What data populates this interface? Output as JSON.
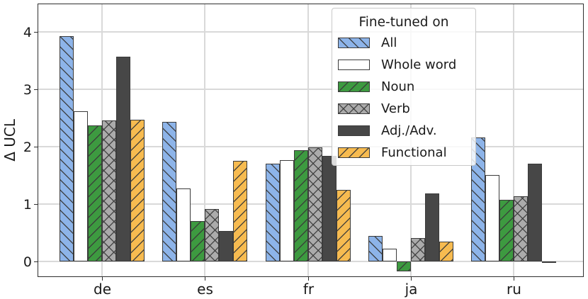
{
  "chart_data": {
    "type": "bar",
    "title": "",
    "xlabel": "",
    "ylabel": "Δ UCL",
    "categories": [
      "de",
      "es",
      "fr",
      "ja",
      "ru"
    ],
    "series": [
      {
        "name": "All",
        "fill": "#8db4e9",
        "hatch": "\\",
        "values": [
          3.93,
          2.43,
          1.7,
          0.45,
          2.16
        ]
      },
      {
        "name": "Whole word",
        "fill": "#ffffff",
        "hatch": "",
        "values": [
          2.62,
          1.27,
          1.76,
          0.22,
          1.51
        ]
      },
      {
        "name": "Noun",
        "fill": "#3d9a40",
        "hatch": "/",
        "values": [
          2.37,
          0.7,
          1.94,
          -0.17,
          1.07
        ]
      },
      {
        "name": "Verb",
        "fill": "#ababab",
        "hatch": "x",
        "values": [
          2.46,
          0.91,
          1.99,
          0.41,
          1.13
        ]
      },
      {
        "name": "Adj./Adv.",
        "fill": "#474747",
        "hatch": "",
        "values": [
          3.57,
          0.53,
          1.84,
          1.19,
          1.7
        ]
      },
      {
        "name": "Functional",
        "fill": "#f7bb50",
        "hatch": "/",
        "values": [
          2.47,
          1.75,
          1.25,
          0.35,
          -0.02
        ]
      }
    ],
    "legend": {
      "title": "Fine-tuned on",
      "position": "upper right"
    },
    "y_ticks": [
      0,
      1,
      2,
      3,
      4
    ],
    "ylim": [
      -0.25,
      4.48
    ],
    "grid": true,
    "edge_color": "#3b3b3b",
    "grid_color": "#d9d9d9"
  }
}
